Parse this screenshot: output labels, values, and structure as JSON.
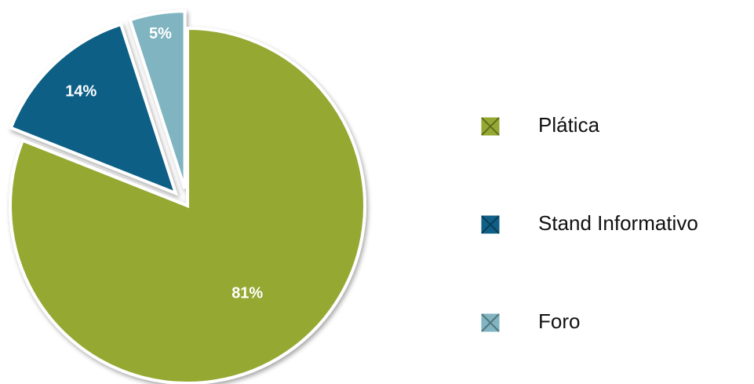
{
  "chart_data": {
    "type": "pie",
    "categories": [
      "Plática",
      "Stand Informativo",
      "Foro"
    ],
    "values": [
      81,
      14,
      5
    ],
    "value_labels": [
      "81%",
      "14%",
      "5%"
    ],
    "colors": [
      "#95a832",
      "#105f86",
      "#7fb4c0"
    ],
    "legend": "right"
  }
}
